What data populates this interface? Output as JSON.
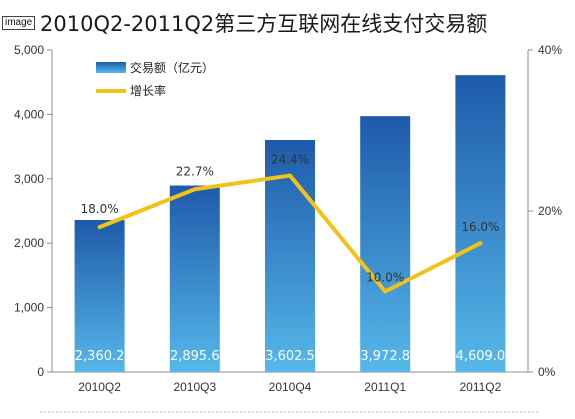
{
  "badge": "image",
  "chart_data": {
    "type": "bar",
    "title": "2010Q2-2011Q2第三方互联网在线支付交易额",
    "categories": [
      "2010Q2",
      "2010Q3",
      "2010Q4",
      "2011Q1",
      "2011Q2"
    ],
    "series": [
      {
        "name": "交易额（亿元）",
        "type": "bar",
        "axis": "left",
        "values": [
          2360.2,
          2895.6,
          3602.5,
          3972.8,
          4609.0
        ],
        "value_labels": [
          "2,360.2",
          "2,895.6",
          "3,602.5",
          "3,972.8",
          "4,609.0"
        ]
      },
      {
        "name": "增长率",
        "type": "line",
        "axis": "right",
        "values": [
          18.0,
          22.7,
          24.4,
          10.0,
          16.0
        ],
        "value_labels": [
          "18.0%",
          "22.7%",
          "24.4%",
          "10.0%",
          "16.0%"
        ]
      }
    ],
    "yleft": {
      "lim": [
        0,
        5000
      ],
      "ticks": [
        "0",
        "1,000",
        "2,000",
        "3,000",
        "4,000",
        "5,000"
      ]
    },
    "yright": {
      "lim": [
        0,
        40
      ],
      "ticks": [
        "0%",
        "20%",
        "40%"
      ]
    },
    "legend_position": "top-left",
    "grid": false,
    "colors": {
      "bar_top": "#1e5aaa",
      "bar_bottom": "#56b8ea",
      "line": "#f2c21a"
    }
  }
}
